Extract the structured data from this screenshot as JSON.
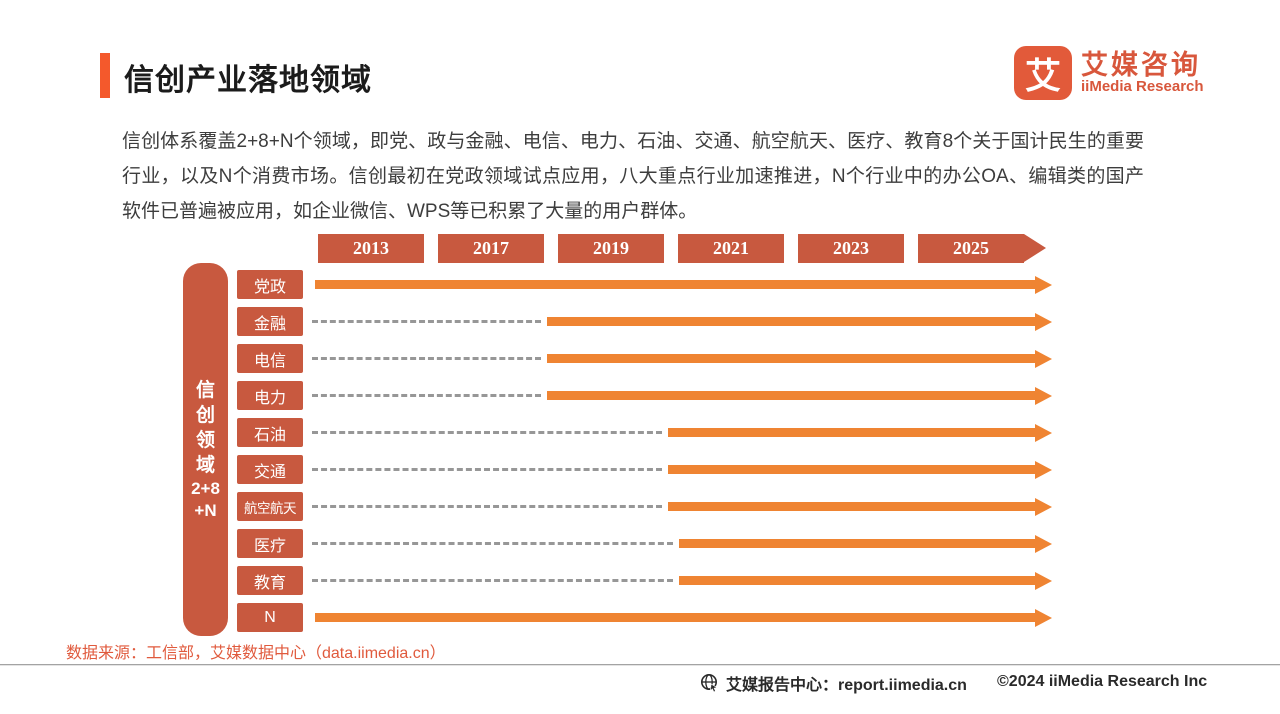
{
  "page": {
    "title": "信创产业落地领域",
    "logo": {
      "square_char": "艾",
      "name_cn": "艾媒咨询",
      "name_en": "iiMedia Research"
    },
    "intro": "信创体系覆盖2+8+N个领域，即党、政与金融、电信、电力、石油、交通、航空航天、医疗、教育8个关于国计民生的重要行业，以及N个消费市场。信创最初在党政领域试点应用，八大重点行业加速推进，N个行业中的办公OA、编辑类的国产软件已普遍被应用，如企业微信、WPS等已积累了大量的用户群体。",
    "source_note": "数据来源：工信部，艾媒数据中心（data.iimedia.cn）",
    "footer": {
      "report_center": "艾媒报告中心：report.iimedia.cn",
      "copyright": "©2024  iiMedia Research Inc"
    }
  },
  "chart_data": {
    "type": "timeline",
    "title": "信创产业落地领域",
    "axis_years": [
      "2013",
      "2017",
      "2019",
      "2021",
      "2023",
      "2025"
    ],
    "side_label": {
      "text": "信创领域2+8+N",
      "lines": [
        "信",
        "创",
        "领",
        "域",
        "2+8",
        "+N"
      ]
    },
    "rows": [
      {
        "label": "党政",
        "start_year": "2013",
        "solid_start_pct": 0.7
      },
      {
        "label": "金融",
        "start_year": "2019",
        "solid_start_pct": 31.9
      },
      {
        "label": "电信",
        "start_year": "2019",
        "solid_start_pct": 31.9
      },
      {
        "label": "电力",
        "start_year": "2019",
        "solid_start_pct": 31.9
      },
      {
        "label": "石油",
        "start_year": "2021",
        "solid_start_pct": 48.2
      },
      {
        "label": "交通",
        "start_year": "2021",
        "solid_start_pct": 48.2
      },
      {
        "label": "航空航天",
        "start_year": "2021",
        "solid_start_pct": 48.2
      },
      {
        "label": "医疗",
        "start_year": "2021",
        "solid_start_pct": 49.7
      },
      {
        "label": "教育",
        "start_year": "2021",
        "solid_start_pct": 49.7
      },
      {
        "label": "N",
        "start_year": "2013",
        "solid_start_pct": 0.7
      }
    ],
    "legend_position": "none",
    "grid": false,
    "colors": {
      "box_red_orange": "#C8593F",
      "arrow_orange": "#EF8432",
      "dash_gray": "#979797",
      "accent": "#F4592C",
      "logo": "#E25A3A"
    }
  }
}
